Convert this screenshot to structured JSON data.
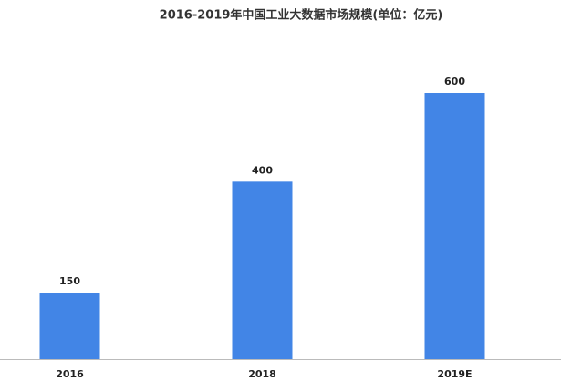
{
  "chart_data": {
    "type": "bar",
    "title": "2016-2019年中国工业大数据市场规模(单位：亿元)",
    "categories": [
      "2016",
      "2018",
      "2019E"
    ],
    "values": [
      150,
      400,
      600
    ],
    "color": "#4285e6",
    "ylim": [
      0,
      600
    ]
  }
}
